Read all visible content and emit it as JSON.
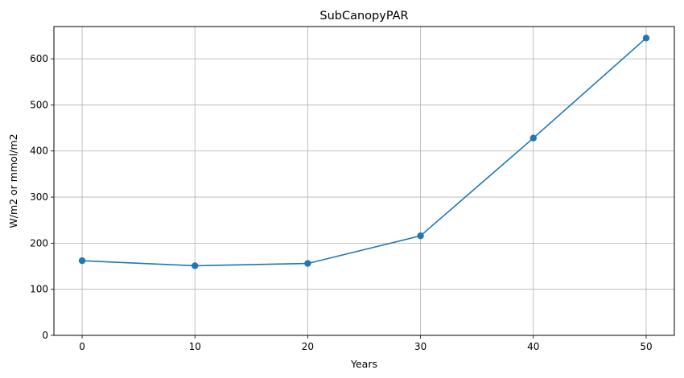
{
  "chart_data": {
    "type": "line",
    "title": "SubCanopyPAR",
    "xlabel": "Years",
    "ylabel": "W/m2 or mmol/m2",
    "x": [
      0,
      10,
      20,
      30,
      40,
      50
    ],
    "series": [
      {
        "values": [
          162,
          151,
          156,
          216,
          428,
          645
        ],
        "color": "#1f77b4"
      }
    ],
    "xticks": [
      0,
      10,
      20,
      30,
      40,
      50
    ],
    "yticks": [
      0,
      100,
      200,
      300,
      400,
      500,
      600
    ],
    "xlim": [
      -2.5,
      52.5
    ],
    "ylim": [
      0,
      670
    ],
    "grid": true,
    "grid_color": "#b0b0b0",
    "legend": "none"
  }
}
